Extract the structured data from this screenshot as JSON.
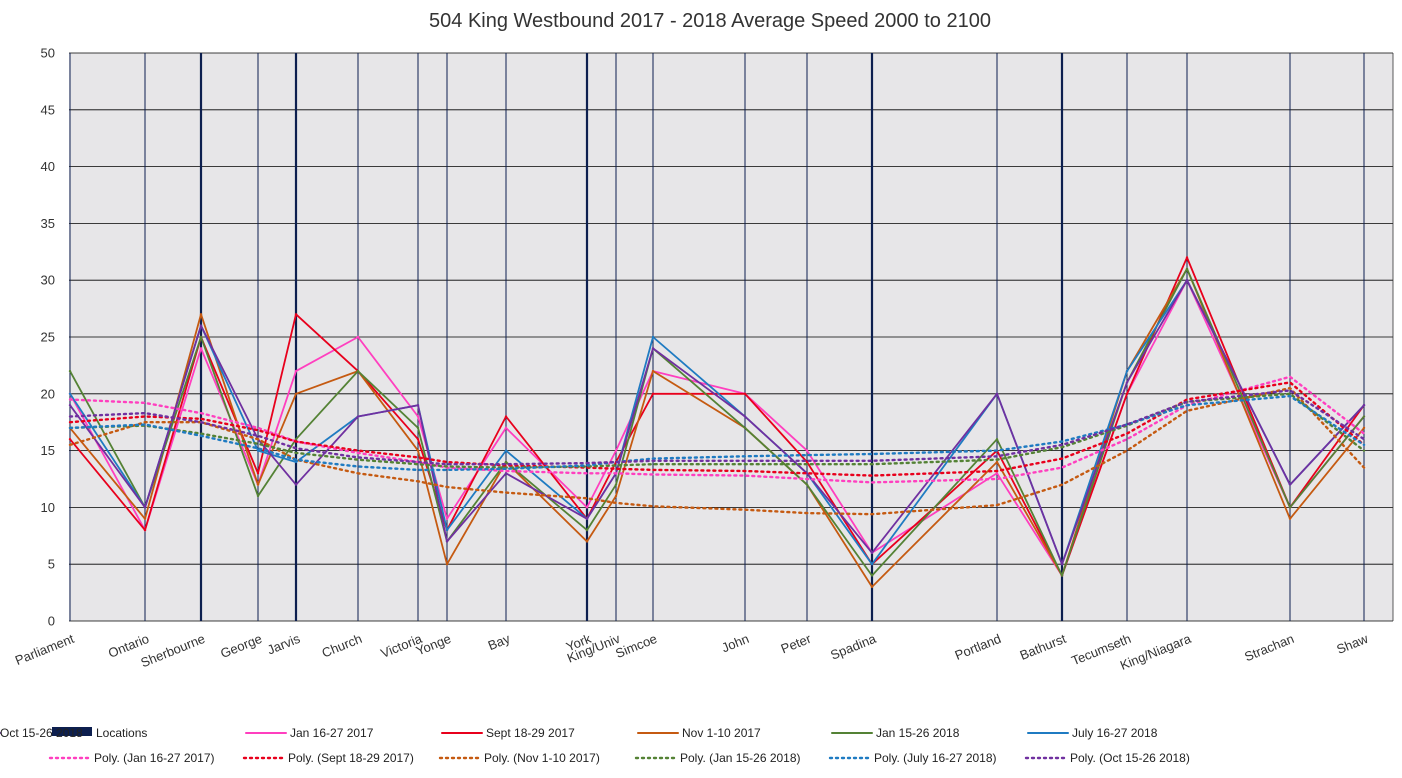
{
  "chart_data": {
    "type": "line",
    "title": "504 King Westbound 2017 - 2018 Average Speed 2000 to 2100",
    "xlabel": "",
    "ylabel": "",
    "ylim": [
      0,
      50
    ],
    "yticks": [
      0,
      5,
      10,
      15,
      20,
      25,
      30,
      35,
      40,
      45,
      50
    ],
    "grid": true,
    "legend_position": "bottom",
    "x_stations": [
      "Parliament",
      "Ontario",
      "Sherbourne",
      "George",
      "Jarvis",
      "Church",
      "Victoria",
      "Yonge",
      "Bay",
      "York",
      "King/Univ",
      "Simcoe",
      "John",
      "Peter",
      "Spadina",
      "Portland",
      "Bathurst",
      "Tecumseth",
      "King/Niagara",
      "Strachan",
      "Shaw"
    ],
    "location_markers": [
      "Parliament",
      "Ontario",
      "Sherbourne",
      "George",
      "Jarvis",
      "Church",
      "Victoria",
      "Yonge",
      "Bay",
      "York",
      "King/Univ",
      "Simcoe",
      "John",
      "Peter",
      "Spadina",
      "Portland",
      "Bathurst",
      "Tecumseth",
      "King/Niagara",
      "Strachan",
      "Shaw"
    ],
    "major_locations": [
      "Sherbourne",
      "Jarvis",
      "York",
      "Spadina",
      "Bathurst"
    ],
    "x": [
      "Parliament",
      "Ontario",
      "Sherbourne",
      "George",
      "Jarvis",
      "Church",
      "Victoria",
      "Yonge",
      "Bay",
      "York",
      "King/Univ",
      "Simcoe",
      "John",
      "Peter",
      "Spadina",
      "Portland",
      "Bathurst",
      "Tecumseth",
      "King/Niagara",
      "Strachan",
      "Shaw"
    ],
    "series": [
      {
        "name": "Jan 16-27 2017",
        "color": "#ff3fbf",
        "style": "solid",
        "values": [
          20,
          8,
          24,
          12,
          22,
          25,
          18,
          9,
          17,
          10,
          15,
          22,
          20,
          15,
          6,
          13,
          4,
          20,
          30,
          10,
          18
        ]
      },
      {
        "name": "Sept 18-29 2017",
        "color": "#e8001c",
        "style": "solid",
        "values": [
          16,
          8,
          25,
          13,
          27,
          22,
          16,
          8,
          18,
          9,
          14,
          20,
          20,
          14,
          5,
          15,
          4,
          20,
          32,
          10,
          19
        ]
      },
      {
        "name": "Nov 1-10 2017",
        "color": "#c55a11",
        "style": "solid",
        "values": [
          17,
          9,
          27,
          12,
          20,
          22,
          15,
          5,
          14,
          7,
          11,
          22,
          17,
          12,
          3,
          14,
          4,
          22,
          31,
          9,
          17
        ]
      },
      {
        "name": "Jan 15-26 2018",
        "color": "#548235",
        "style": "solid",
        "values": [
          22,
          10,
          25,
          11,
          16,
          22,
          17,
          7,
          14,
          8,
          12,
          24,
          17,
          12,
          4,
          16,
          4,
          21,
          31,
          10,
          18
        ]
      },
      {
        "name": "July 16-27 2018",
        "color": "#1f7bc2",
        "style": "solid",
        "values": [
          20,
          10,
          26,
          15,
          14,
          18,
          19,
          8,
          15,
          9,
          13,
          25,
          18,
          13,
          5,
          20,
          5,
          22,
          30,
          12,
          19
        ]
      },
      {
        "name": "Oct 15-26 2018",
        "color": "#7030a0",
        "style": "solid",
        "values": [
          19,
          10,
          26,
          16,
          12,
          18,
          19,
          7,
          13,
          9,
          13,
          24,
          18,
          13,
          6,
          20,
          5,
          21,
          30,
          12,
          19
        ]
      },
      {
        "name": "Poly. (Jan 16-27 2017)",
        "color": "#ff3fbf",
        "style": "dotted",
        "values": [
          19.5,
          19.2,
          18.3,
          17,
          15.8,
          14.8,
          14,
          13.5,
          13.2,
          13,
          13,
          12.9,
          12.8,
          12.5,
          12.2,
          12.5,
          13.5,
          16,
          19,
          21.5,
          16.5
        ]
      },
      {
        "name": "Poly. (Sept 18-29 2017)",
        "color": "#e8001c",
        "style": "dotted",
        "values": [
          17.5,
          18,
          17.8,
          16.8,
          15.8,
          15,
          14.4,
          14,
          13.7,
          13.5,
          13.4,
          13.3,
          13.2,
          13,
          12.8,
          13.2,
          14.3,
          16.5,
          19.5,
          21,
          15.5
        ]
      },
      {
        "name": "Poly. (Nov 1-10 2017)",
        "color": "#c55a11",
        "style": "dotted",
        "values": [
          15.5,
          17.5,
          17.5,
          16,
          14.2,
          13,
          12.3,
          11.8,
          11.3,
          10.8,
          10.4,
          10.1,
          9.8,
          9.5,
          9.4,
          10.2,
          12,
          15,
          18.5,
          20.5,
          13.5
        ]
      },
      {
        "name": "Poly. (Jan 15-26 2018)",
        "color": "#548235",
        "style": "dotted",
        "values": [
          17,
          17.2,
          16.5,
          15.6,
          14.8,
          14.2,
          13.8,
          13.6,
          13.5,
          13.6,
          13.7,
          13.8,
          13.8,
          13.8,
          13.8,
          14.2,
          15.3,
          17.2,
          19.3,
          20,
          15
        ]
      },
      {
        "name": "Poly. (July 16-27 2018)",
        "color": "#1f7bc2",
        "style": "dotted",
        "values": [
          17,
          17.3,
          16.3,
          15.2,
          14.2,
          13.6,
          13.3,
          13.3,
          13.4,
          13.7,
          14,
          14.3,
          14.5,
          14.6,
          14.7,
          15,
          15.8,
          17.3,
          19,
          19.8,
          15.5
        ]
      },
      {
        "name": "Poly. (Oct 15-26 2018)",
        "color": "#7030a0",
        "style": "dotted",
        "values": [
          18,
          18.3,
          17.5,
          16.3,
          15.2,
          14.4,
          14,
          13.8,
          13.8,
          13.9,
          14,
          14.1,
          14.1,
          14.1,
          14.1,
          14.5,
          15.5,
          17.3,
          19.3,
          20.3,
          16
        ]
      }
    ]
  },
  "legend": {
    "locations_label": "Locations",
    "locations_color": "#0d1f4f"
  },
  "colors": {
    "plot_background": "#e7e6e8",
    "gridline": "#000000",
    "location_line": "#0d1f4f"
  }
}
